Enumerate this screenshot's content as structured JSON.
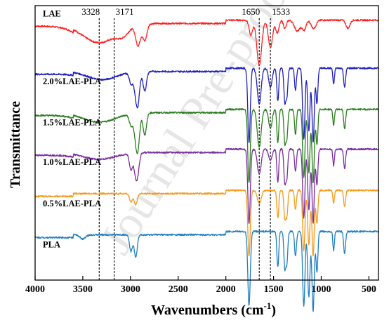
{
  "chart_data": {
    "type": "line",
    "title": "",
    "xlabel": "Wavenumbers (cm",
    "xlabel_sup": "-1",
    "xlabel_close": ")",
    "ylabel": "Transmittance",
    "xlim": [
      4000,
      400
    ],
    "x_reversed": true,
    "x_ticks": [
      4000,
      3500,
      3000,
      2500,
      2000,
      1500,
      1000,
      500
    ],
    "y_ticks_shown": false,
    "grid": false,
    "legend": "none (series labelled directly on the left of each trace)",
    "watermark": "Journal Pre-proof",
    "reference_lines": [
      {
        "x": 3328,
        "label": "3328"
      },
      {
        "x": 3171,
        "label": "3171"
      },
      {
        "x": 1650,
        "label": "1650"
      },
      {
        "x": 1533,
        "label": "1533"
      }
    ],
    "series": [
      {
        "name": "LAE",
        "color": "#ff2020",
        "baseline": 0.935,
        "dips": [
          [
            3328,
            0.07,
            180
          ],
          [
            3080,
            0.025,
            60
          ],
          [
            2920,
            0.075,
            25
          ],
          [
            2850,
            0.06,
            22
          ],
          [
            1738,
            0.055,
            18
          ],
          [
            1650,
            0.165,
            25
          ],
          [
            1533,
            0.1,
            22
          ],
          [
            1460,
            0.045,
            18
          ],
          [
            1380,
            0.03,
            15
          ],
          [
            1250,
            0.04,
            30
          ],
          [
            1180,
            0.035,
            20
          ],
          [
            1080,
            0.03,
            25
          ],
          [
            720,
            0.03,
            20
          ]
        ]
      },
      {
        "name": "2.0%LAE-PLA",
        "color": "#1f1fbf",
        "baseline": 0.76,
        "dips": [
          [
            3300,
            0.03,
            150
          ],
          [
            2995,
            0.04,
            18
          ],
          [
            2945,
            0.07,
            20
          ],
          [
            2920,
            0.09,
            18
          ],
          [
            2850,
            0.07,
            18
          ],
          [
            1757,
            0.27,
            13
          ],
          [
            1650,
            0.13,
            20
          ],
          [
            1533,
            0.07,
            18
          ],
          [
            1455,
            0.12,
            10
          ],
          [
            1382,
            0.12,
            10
          ],
          [
            1360,
            0.1,
            10
          ],
          [
            1270,
            0.08,
            10
          ],
          [
            1183,
            0.26,
            12
          ],
          [
            1130,
            0.23,
            12
          ],
          [
            1085,
            0.27,
            12
          ],
          [
            1045,
            0.13,
            10
          ],
          [
            870,
            0.06,
            8
          ],
          [
            755,
            0.07,
            10
          ]
        ]
      },
      {
        "name": "1.5%LAE-PLA",
        "color": "#2a7d1f",
        "baseline": 0.61,
        "dips": [
          [
            3328,
            0.035,
            170
          ],
          [
            2995,
            0.04,
            18
          ],
          [
            2945,
            0.08,
            20
          ],
          [
            2920,
            0.1,
            18
          ],
          [
            2850,
            0.08,
            18
          ],
          [
            1757,
            0.27,
            13
          ],
          [
            1650,
            0.14,
            20
          ],
          [
            1533,
            0.07,
            18
          ],
          [
            1455,
            0.12,
            10
          ],
          [
            1382,
            0.12,
            10
          ],
          [
            1360,
            0.1,
            10
          ],
          [
            1270,
            0.09,
            10
          ],
          [
            1183,
            0.25,
            12
          ],
          [
            1130,
            0.23,
            12
          ],
          [
            1085,
            0.27,
            12
          ],
          [
            1045,
            0.13,
            10
          ],
          [
            870,
            0.06,
            8
          ],
          [
            755,
            0.07,
            10
          ]
        ]
      },
      {
        "name": "1.0%LAE-PLA",
        "color": "#7b2ea0",
        "baseline": 0.465,
        "dips": [
          [
            3328,
            0.025,
            170
          ],
          [
            2995,
            0.06,
            16
          ],
          [
            2945,
            0.08,
            18
          ],
          [
            2920,
            0.05,
            16
          ],
          [
            1757,
            0.27,
            13
          ],
          [
            1650,
            0.09,
            20
          ],
          [
            1533,
            0.04,
            18
          ],
          [
            1455,
            0.12,
            10
          ],
          [
            1382,
            0.12,
            10
          ],
          [
            1360,
            0.1,
            10
          ],
          [
            1270,
            0.08,
            10
          ],
          [
            1183,
            0.25,
            12
          ],
          [
            1130,
            0.22,
            12
          ],
          [
            1085,
            0.27,
            12
          ],
          [
            1045,
            0.13,
            10
          ],
          [
            870,
            0.06,
            8
          ],
          [
            755,
            0.07,
            10
          ]
        ]
      },
      {
        "name": "0.5%LAE-PLA",
        "color": "#f59a1c",
        "baseline": 0.315,
        "dips": [
          [
            2995,
            0.03,
            16
          ],
          [
            2945,
            0.04,
            16
          ],
          [
            1757,
            0.24,
            13
          ],
          [
            1650,
            0.05,
            20
          ],
          [
            1455,
            0.1,
            10
          ],
          [
            1382,
            0.1,
            10
          ],
          [
            1360,
            0.09,
            10
          ],
          [
            1270,
            0.07,
            10
          ],
          [
            1183,
            0.22,
            12
          ],
          [
            1130,
            0.2,
            12
          ],
          [
            1085,
            0.24,
            12
          ],
          [
            1045,
            0.12,
            10
          ],
          [
            870,
            0.05,
            8
          ],
          [
            755,
            0.06,
            10
          ]
        ]
      },
      {
        "name": "PLA",
        "color": "#1f7fc4",
        "baseline": 0.165,
        "dips": [
          [
            3500,
            0.015,
            30
          ],
          [
            2995,
            0.06,
            16
          ],
          [
            2945,
            0.08,
            16
          ],
          [
            1757,
            0.27,
            13
          ],
          [
            1455,
            0.13,
            10
          ],
          [
            1382,
            0.13,
            10
          ],
          [
            1360,
            0.11,
            10
          ],
          [
            1270,
            0.09,
            10
          ],
          [
            1183,
            0.27,
            12
          ],
          [
            1130,
            0.24,
            12
          ],
          [
            1085,
            0.29,
            12
          ],
          [
            1045,
            0.15,
            10
          ],
          [
            870,
            0.07,
            8
          ],
          [
            755,
            0.08,
            10
          ]
        ]
      }
    ]
  }
}
